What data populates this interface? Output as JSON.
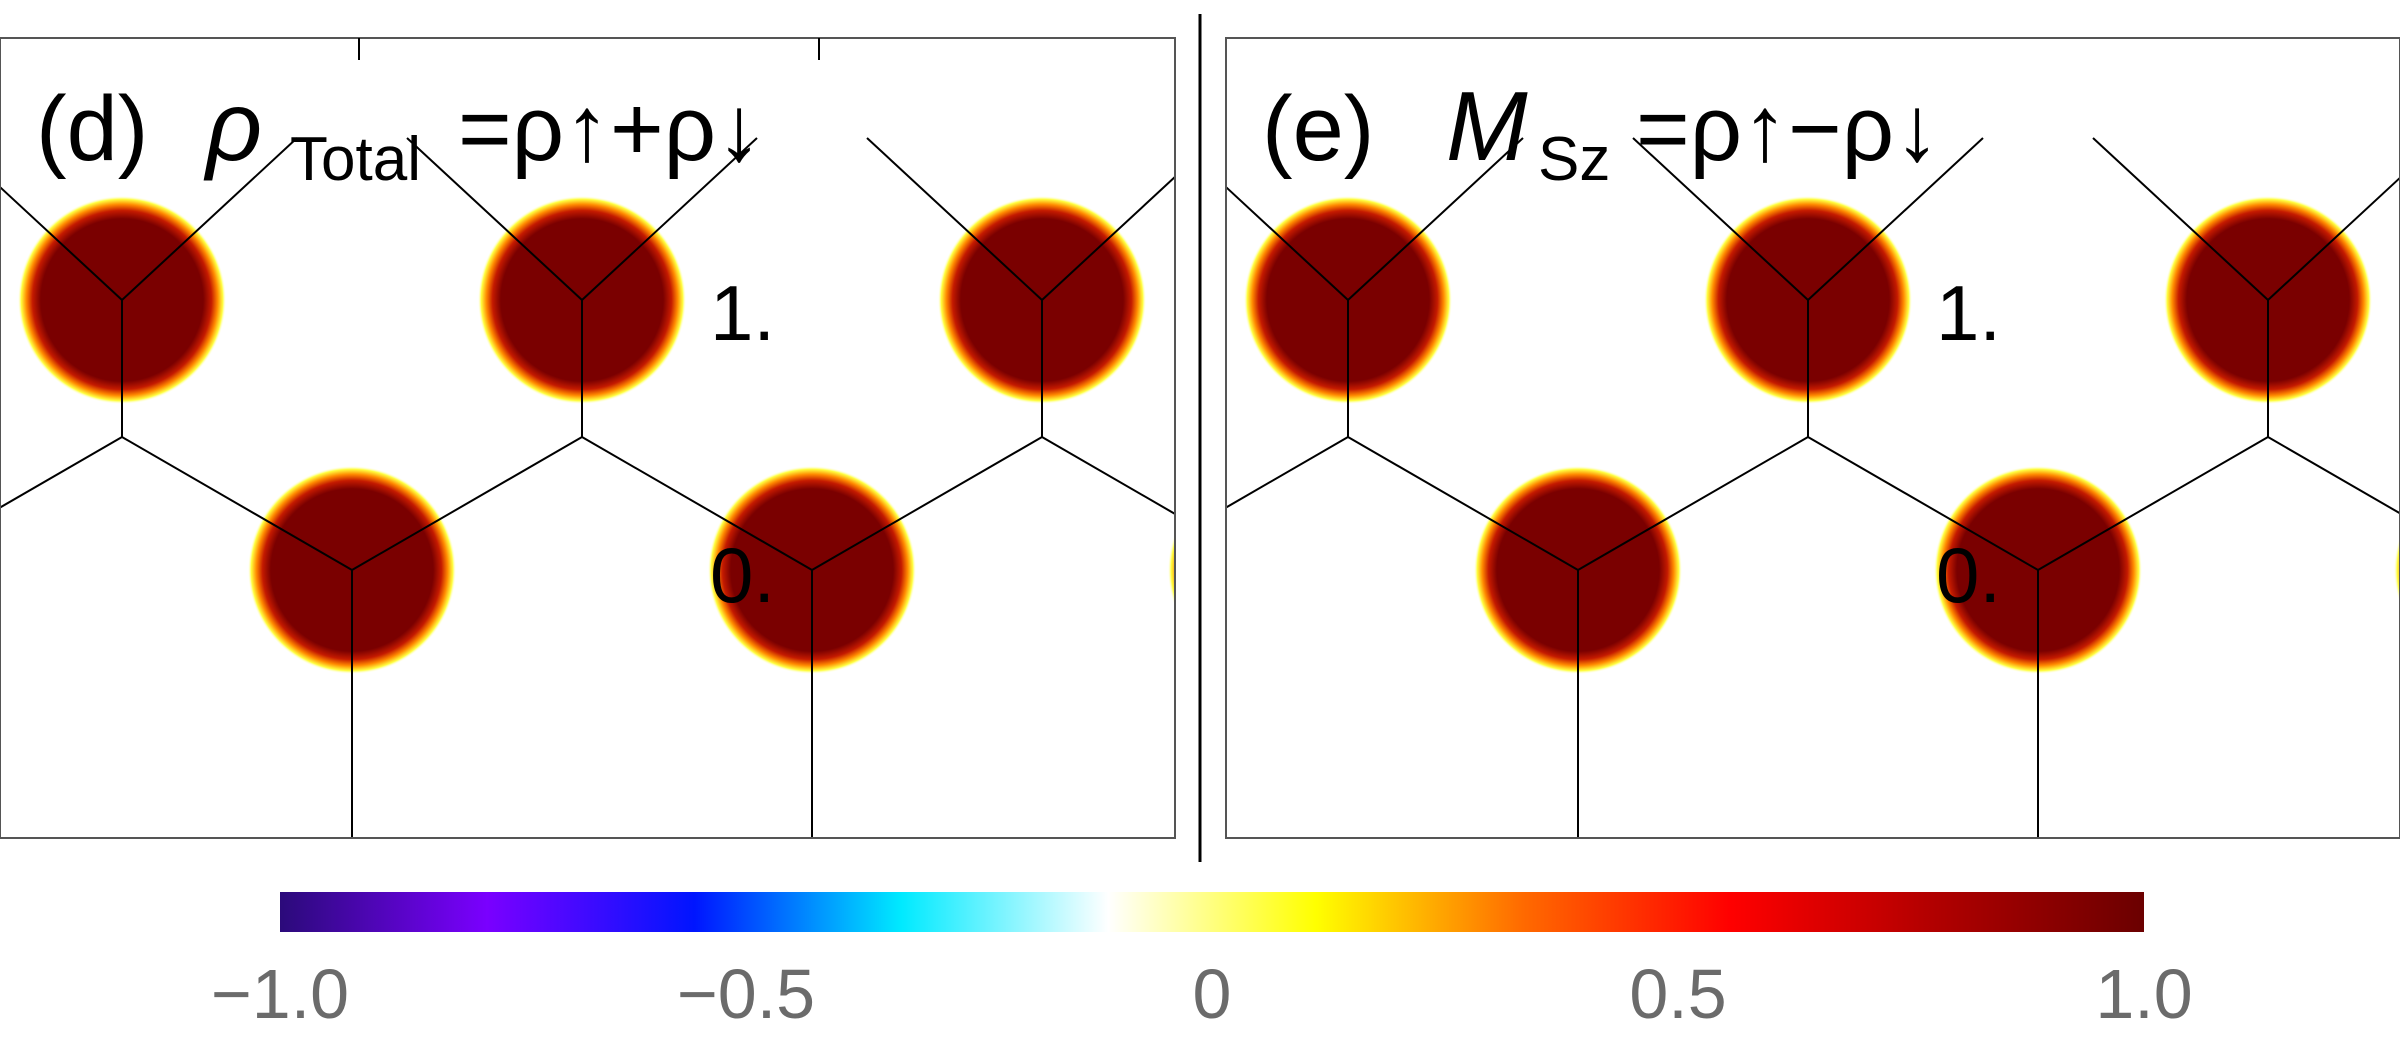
{
  "panels": [
    {
      "id": "d",
      "label": "(d)",
      "main_symbol": "ρ",
      "main_subscript": "Total",
      "equation": "=ρ↑+ρ↓",
      "inner_label_top": "1.",
      "inner_label_bottom": "0."
    },
    {
      "id": "e",
      "label": "(e)",
      "main_symbol": "M",
      "main_subscript": "Sz",
      "equation": "=ρ↑−ρ↓",
      "inner_label_top": "1.",
      "inner_label_bottom": "0."
    }
  ],
  "colorbar": {
    "ticks": [
      "−1.0",
      "−0.5",
      "0",
      "0.5",
      "1.0"
    ],
    "colors": [
      "#2b0a7a",
      "#7a00ff",
      "#0015ff",
      "#00eaff",
      "#ffffff",
      "#ffff00",
      "#ff6a00",
      "#ff0000",
      "#b00000",
      "#6b0000"
    ]
  },
  "site_color": "#7a0000",
  "site_edge_color": "#ffff00"
}
